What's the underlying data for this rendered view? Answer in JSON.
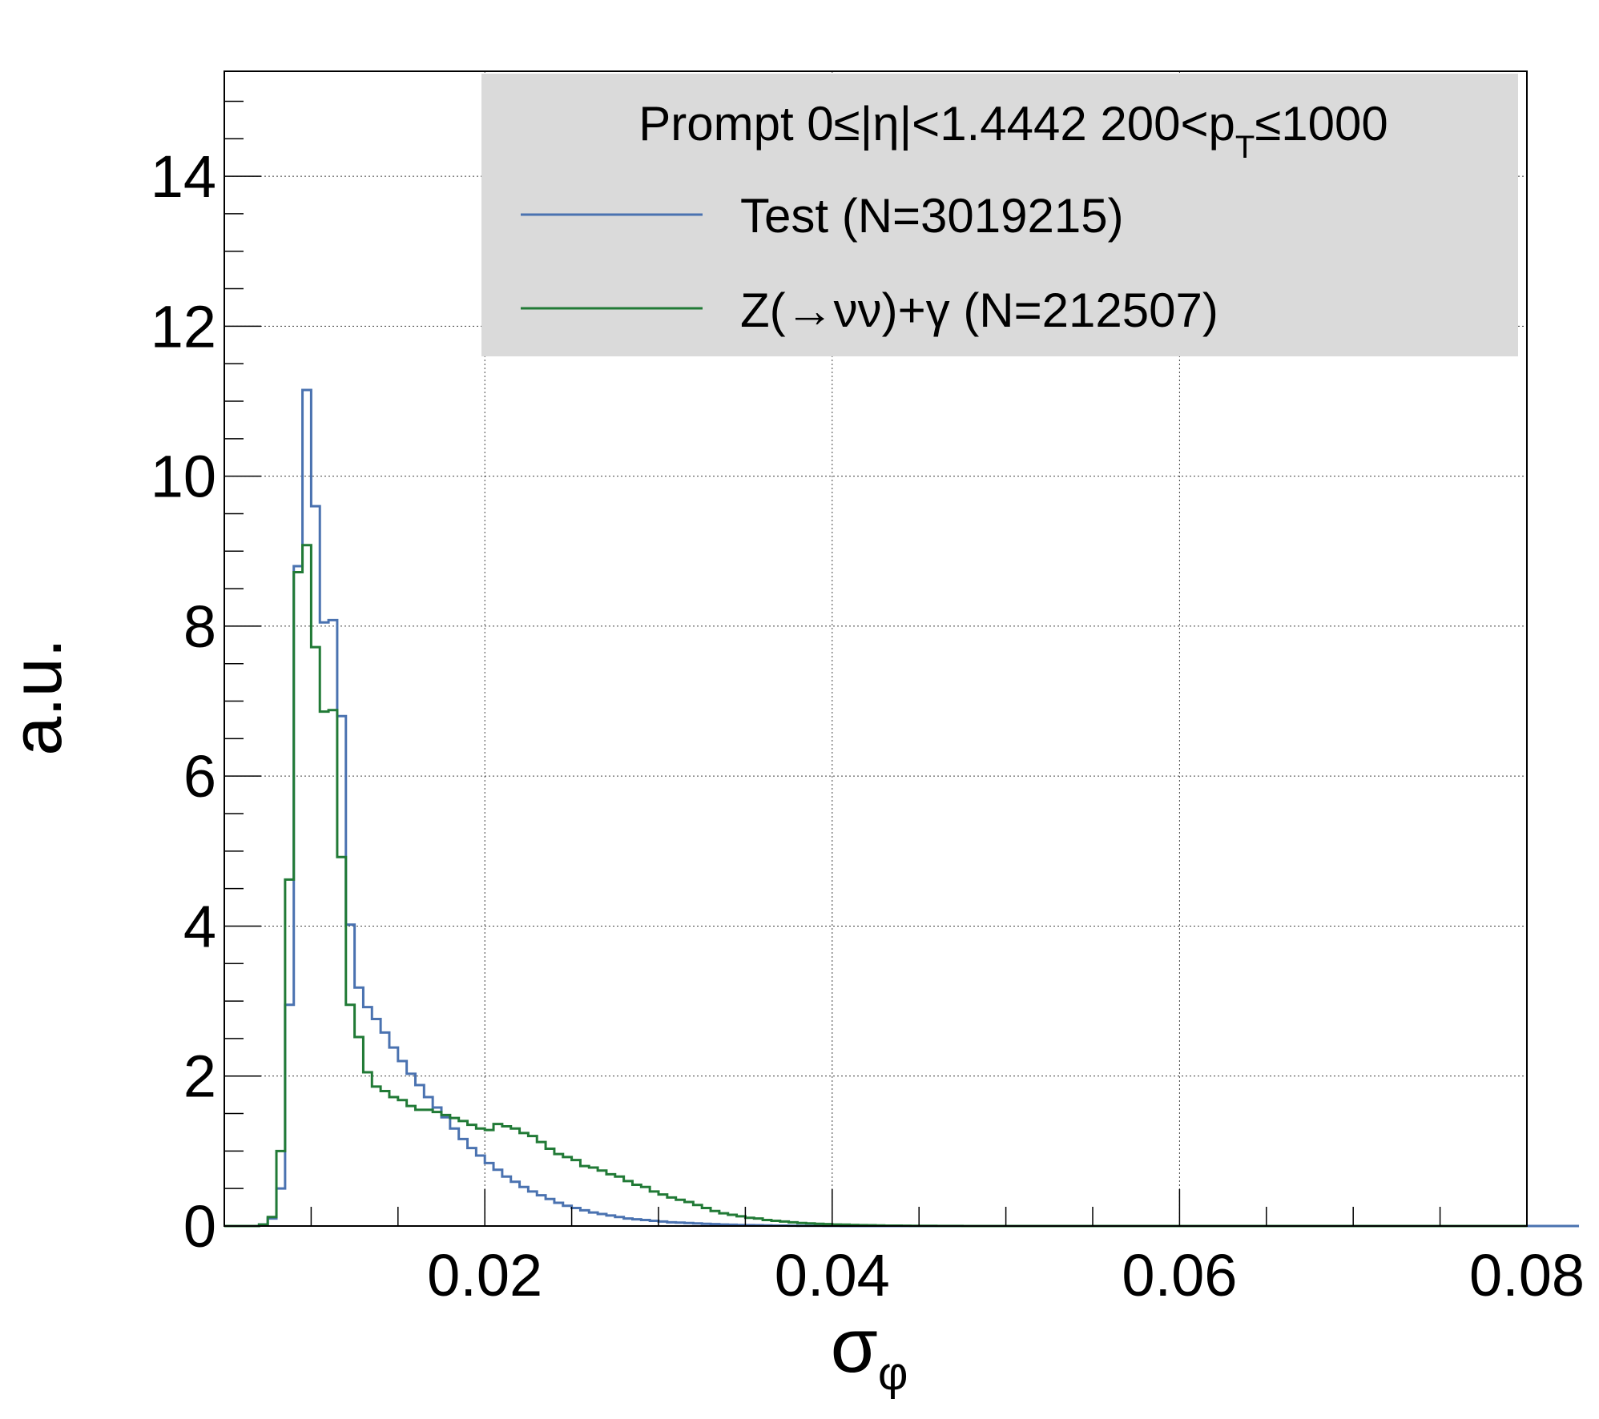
{
  "chart_data": {
    "type": "line",
    "style": "step-histogram",
    "xlabel": "σ",
    "xlabel_sub": "φ",
    "ylabel": "a.u.",
    "xlim": [
      0.005,
      0.08
    ],
    "ylim": [
      0,
      15.4
    ],
    "grid": true,
    "x_bin_width": 0.0005,
    "x_start": 0.005,
    "xticks": [
      0.02,
      0.04,
      0.06,
      0.08
    ],
    "xtick_labels": [
      "0.02",
      "0.04",
      "0.06",
      "0.08"
    ],
    "yticks": [
      0,
      2,
      4,
      6,
      8,
      10,
      12,
      14
    ],
    "ytick_labels": [
      "0",
      "2",
      "4",
      "6",
      "8",
      "10",
      "12",
      "14"
    ],
    "legend": {
      "placement": "top-right",
      "header_parts": [
        "Prompt  0≤|η|<1.4442  200<p",
        "T",
        "≤1000"
      ]
    },
    "series": [
      {
        "name": "Test (N=3019215)",
        "color": "#4a72b0",
        "values": [
          0,
          0,
          0,
          0,
          0.02,
          0.1,
          0.5,
          2.95,
          8.8,
          11.15,
          9.6,
          8.05,
          8.08,
          6.8,
          4.02,
          3.18,
          2.92,
          2.76,
          2.58,
          2.38,
          2.2,
          2.03,
          1.88,
          1.72,
          1.58,
          1.45,
          1.3,
          1.16,
          1.04,
          0.94,
          0.84,
          0.75,
          0.66,
          0.59,
          0.52,
          0.46,
          0.41,
          0.36,
          0.31,
          0.27,
          0.24,
          0.21,
          0.18,
          0.16,
          0.14,
          0.12,
          0.1,
          0.09,
          0.08,
          0.07,
          0.06,
          0.05,
          0.045,
          0.04,
          0.035,
          0.03,
          0.025,
          0.02,
          0.017,
          0.014,
          0.012,
          0.01,
          0.008,
          0.006,
          0.005,
          0.004,
          0.003,
          0.002,
          0.002,
          0.001,
          0.001,
          0,
          0,
          0,
          0,
          0,
          0,
          0,
          0,
          0,
          0,
          0,
          0,
          0,
          0,
          0,
          0,
          0,
          0,
          0,
          0,
          0,
          0,
          0,
          0,
          0,
          0,
          0,
          0,
          0,
          0,
          0,
          0,
          0,
          0,
          0,
          0,
          0,
          0,
          0,
          0,
          0,
          0,
          0,
          0,
          0,
          0,
          0,
          0,
          0,
          0,
          0,
          0,
          0,
          0,
          0,
          0,
          0,
          0,
          0,
          0,
          0,
          0,
          0,
          0,
          0,
          0,
          0,
          0,
          0,
          0,
          0,
          0,
          0,
          0,
          0,
          0,
          0,
          0,
          0,
          0,
          0,
          0,
          0,
          0,
          0
        ]
      },
      {
        "name": "Z(→νν)+γ (N=212507)",
        "color": "#217a36",
        "values": [
          0,
          0,
          0,
          0,
          0.02,
          0.12,
          1.0,
          4.62,
          8.72,
          9.08,
          7.72,
          6.86,
          6.88,
          4.92,
          2.95,
          2.52,
          2.05,
          1.86,
          1.8,
          1.72,
          1.68,
          1.6,
          1.55,
          1.55,
          1.52,
          1.48,
          1.44,
          1.4,
          1.35,
          1.3,
          1.28,
          1.36,
          1.33,
          1.3,
          1.24,
          1.2,
          1.12,
          1.03,
          0.96,
          0.92,
          0.88,
          0.8,
          0.78,
          0.74,
          0.69,
          0.66,
          0.6,
          0.55,
          0.52,
          0.46,
          0.42,
          0.38,
          0.35,
          0.32,
          0.28,
          0.24,
          0.2,
          0.17,
          0.15,
          0.13,
          0.11,
          0.1,
          0.08,
          0.07,
          0.06,
          0.05,
          0.04,
          0.035,
          0.03,
          0.025,
          0.02,
          0.018,
          0.015,
          0.012,
          0.01,
          0.008,
          0.006,
          0.005,
          0.004,
          0.003,
          0.002,
          0.002,
          0.001,
          0.001,
          0.001,
          0,
          0,
          0,
          0,
          0,
          0,
          0,
          0,
          0,
          0,
          0,
          0,
          0,
          0,
          0,
          0,
          0,
          0,
          0,
          0,
          0,
          0,
          0,
          0,
          0,
          0,
          0,
          0,
          0,
          0,
          0,
          0,
          0,
          0,
          0,
          0,
          0,
          0,
          0,
          0,
          0,
          0,
          0,
          0,
          0,
          0,
          0,
          0,
          0,
          0,
          0,
          0,
          0,
          0,
          0,
          0,
          0,
          0,
          0,
          0,
          0,
          0,
          0,
          0,
          0
        ]
      }
    ]
  }
}
